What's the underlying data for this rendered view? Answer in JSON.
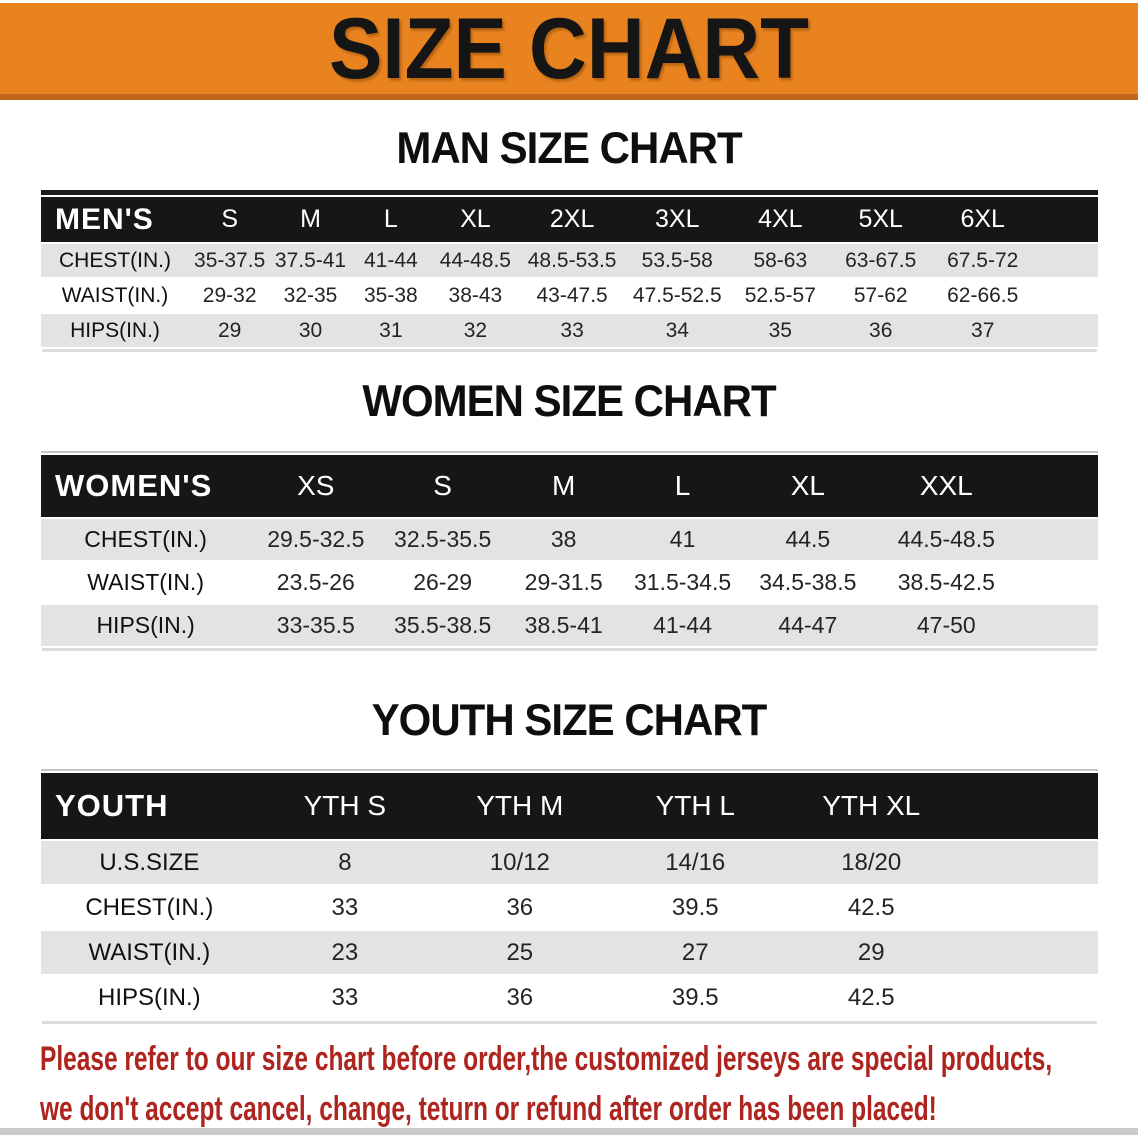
{
  "banner": {
    "title": "SIZE CHART"
  },
  "sections": [
    {
      "heading": "MAN SIZE CHART",
      "header_label": "MEN'S",
      "columns": [
        "S",
        "M",
        "L",
        "XL",
        "2XL",
        "3XL",
        "4XL",
        "5XL",
        "6XL"
      ],
      "rows": [
        {
          "label": "CHEST(IN.)",
          "values": [
            "35-37.5",
            "37.5-41",
            "41-44",
            "44-48.5",
            "48.5-53.5",
            "53.5-58",
            "58-63",
            "63-67.5",
            "67.5-72"
          ]
        },
        {
          "label": "WAIST(IN.)",
          "values": [
            "29-32",
            "32-35",
            "35-38",
            "38-43",
            "43-47.5",
            "47.5-52.5",
            "52.5-57",
            "57-62",
            "62-66.5"
          ]
        },
        {
          "label": "HIPS(IN.)",
          "values": [
            "29",
            "30",
            "31",
            "32",
            "33",
            "34",
            "35",
            "36",
            "37"
          ]
        }
      ]
    },
    {
      "heading": "WOMEN SIZE CHART",
      "header_label": "WOMEN'S",
      "columns": [
        "XS",
        "S",
        "M",
        "L",
        "XL",
        "XXL"
      ],
      "rows": [
        {
          "label": "CHEST(IN.)",
          "values": [
            "29.5-32.5",
            "32.5-35.5",
            "38",
            "41",
            "44.5",
            "44.5-48.5"
          ]
        },
        {
          "label": "WAIST(IN.)",
          "values": [
            "23.5-26",
            "26-29",
            "29-31.5",
            "31.5-34.5",
            "34.5-38.5",
            "38.5-42.5"
          ]
        },
        {
          "label": "HIPS(IN.)",
          "values": [
            "33-35.5",
            "35.5-38.5",
            "38.5-41",
            "41-44",
            "44-47",
            "47-50"
          ]
        }
      ]
    },
    {
      "heading": "YOUTH SIZE CHART",
      "header_label": "YOUTH",
      "columns": [
        "YTH S",
        "YTH M",
        "YTH L",
        "YTH XL"
      ],
      "rows": [
        {
          "label": "U.S.SIZE",
          "values": [
            "8",
            "10/12",
            "14/16",
            "18/20"
          ]
        },
        {
          "label": "CHEST(IN.)",
          "values": [
            "33",
            "36",
            "39.5",
            "42.5"
          ]
        },
        {
          "label": "WAIST(IN.)",
          "values": [
            "23",
            "25",
            "27",
            "29"
          ]
        },
        {
          "label": "HIPS(IN.)",
          "values": [
            "33",
            "36",
            "39.5",
            "42.5"
          ]
        }
      ]
    }
  ],
  "footer": {
    "lines": [
      "Please refer to our size chart before order,the customized jerseys are special products,",
      "we don't accept cancel, change, teturn or refund after order has been placed!"
    ]
  },
  "colors": {
    "banner_orange": "#E8831F",
    "banner_edge": "#C2661C",
    "table_header_black": "#161616",
    "row_shaded_gray": "#E3E3E3",
    "row_plain_white": "#FFFFFF",
    "disclaimer_red": "#AE241F",
    "bottom_strip_gray": "#CBCBCB"
  }
}
